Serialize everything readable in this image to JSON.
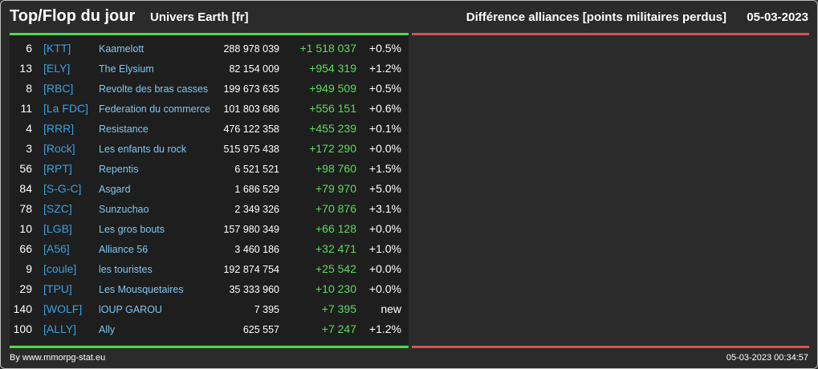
{
  "header": {
    "title": "Top/Flop du jour",
    "universe": "Univers Earth [fr]",
    "ranking_title": "Différence alliances [points militaires perdus]",
    "date": "05-03-2023"
  },
  "colors": {
    "background": "#2b2b2b",
    "table_background": "#1e1e1e",
    "top_accent": "#4cdb4c",
    "flop_accent": "#d9534f",
    "tag": "#3aa0e0",
    "name": "#7ec6f2",
    "gain": "#5bdc5b"
  },
  "top_rows": [
    {
      "rank": "6",
      "tag": "[KTT]",
      "name": "Kaamelott",
      "points": "288 978 039",
      "diff": "+1 518 037",
      "pct": "+0.5%"
    },
    {
      "rank": "13",
      "tag": "[ELY]",
      "name": "The Elysium",
      "points": "82 154 009",
      "diff": "+954 319",
      "pct": "+1.2%"
    },
    {
      "rank": "8",
      "tag": "[RBC]",
      "name": "Revolte des bras casses",
      "points": "199 673 635",
      "diff": "+949 509",
      "pct": "+0.5%"
    },
    {
      "rank": "11",
      "tag": "[La FDC]",
      "name": "Federation du commerce",
      "points": "101 803 686",
      "diff": "+556 151",
      "pct": "+0.6%"
    },
    {
      "rank": "4",
      "tag": "[RRR]",
      "name": "Resistance",
      "points": "476 122 358",
      "diff": "+455 239",
      "pct": "+0.1%"
    },
    {
      "rank": "3",
      "tag": "[Rock]",
      "name": "Les enfants du rock",
      "points": "515 975 438",
      "diff": "+172 290",
      "pct": "+0.0%"
    },
    {
      "rank": "56",
      "tag": "[RPT]",
      "name": "Repentis",
      "points": "6 521 521",
      "diff": "+98 760",
      "pct": "+1.5%"
    },
    {
      "rank": "84",
      "tag": "[S-G-C]",
      "name": "Asgard",
      "points": "1 686 529",
      "diff": "+79 970",
      "pct": "+5.0%"
    },
    {
      "rank": "78",
      "tag": "[SZC]",
      "name": "Sunzuchao",
      "points": "2 349 326",
      "diff": "+70 876",
      "pct": "+3.1%"
    },
    {
      "rank": "10",
      "tag": "[LGB]",
      "name": "Les gros bouts",
      "points": "157 980 349",
      "diff": "+66 128",
      "pct": "+0.0%"
    },
    {
      "rank": "66",
      "tag": "[A56]",
      "name": "Alliance 56",
      "points": "3 460 186",
      "diff": "+32 471",
      "pct": "+1.0%"
    },
    {
      "rank": "9",
      "tag": "[coule]",
      "name": "les touristes",
      "points": "192 874 754",
      "diff": "+25 542",
      "pct": "+0.0%"
    },
    {
      "rank": "29",
      "tag": "[TPU]",
      "name": "Les Mousquetaires",
      "points": "35 333 960",
      "diff": "+10 230",
      "pct": "+0.0%"
    },
    {
      "rank": "140",
      "tag": "[WOLF]",
      "name": "lOUP GAROU",
      "points": "7 395",
      "diff": "+7 395",
      "pct": "new"
    },
    {
      "rank": "100",
      "tag": "[ALLY]",
      "name": "Ally",
      "points": "625 557",
      "diff": "+7 247",
      "pct": "+1.2%"
    }
  ],
  "footer": {
    "credit": "By www.mmorpg-stat.eu",
    "timestamp": "05-03-2023 00:34:57"
  }
}
